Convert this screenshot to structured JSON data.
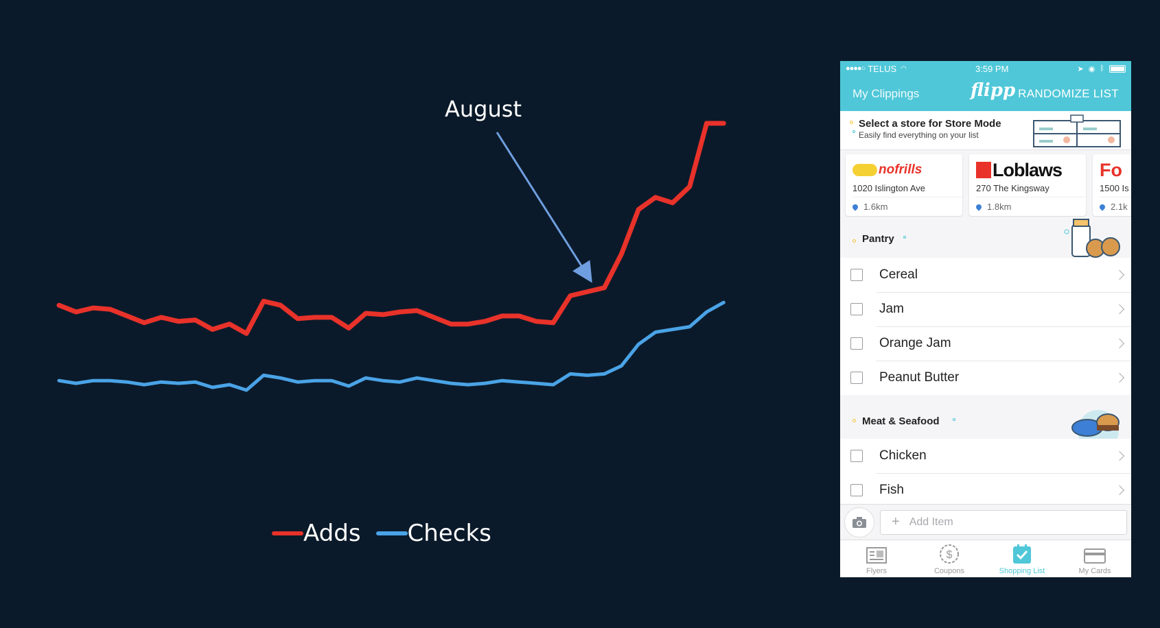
{
  "chart_data": {
    "type": "line",
    "x": [
      1,
      2,
      3,
      4,
      5,
      6,
      7,
      8,
      9,
      10,
      11,
      12,
      13,
      14,
      15,
      16,
      17,
      18,
      19,
      20,
      21,
      22,
      23,
      24,
      25,
      26,
      27,
      28,
      29,
      30,
      31,
      32,
      33,
      34,
      35,
      36,
      37,
      38,
      39,
      40,
      41,
      42
    ],
    "series": [
      {
        "name": "Adds",
        "color": "#e8322a",
        "values": [
          61,
          56,
          59,
          58,
          53,
          48,
          52,
          49,
          50,
          43,
          47,
          40,
          64,
          61,
          51,
          52,
          52,
          44,
          55,
          54,
          56,
          57,
          52,
          47,
          47,
          49,
          53,
          53,
          49,
          48,
          68,
          71,
          74,
          99,
          132,
          141,
          137,
          149,
          196,
          196,
          null,
          null
        ]
      },
      {
        "name": "Checks",
        "color": "#4aa3e6",
        "values": [
          5,
          3,
          5,
          5,
          4,
          2,
          4,
          3,
          4,
          0,
          2,
          -2,
          9,
          7,
          4,
          5,
          5,
          1,
          7,
          5,
          4,
          7,
          5,
          3,
          2,
          3,
          5,
          4,
          3,
          2,
          10,
          9,
          10,
          16,
          32,
          41,
          43,
          45,
          56,
          63,
          null,
          null
        ]
      }
    ],
    "ylim": [
      -30,
      200
    ],
    "annotation": "August",
    "legend_placement": "bottom-center"
  },
  "phone": {
    "status": {
      "carrier": "TELUS",
      "time": "3:59 PM"
    },
    "nav": {
      "left": "My Clippings",
      "logo": "flipp",
      "right": "RANDOMIZE LIST"
    },
    "store_mode": {
      "title": "Select a store for Store Mode",
      "subtitle": "Easily find everything on your list"
    },
    "stores": [
      {
        "name": "nofrills",
        "address": "1020 Islington Ave",
        "distance": "1.6km"
      },
      {
        "name": "Loblaws",
        "address": "270 The Kingsway",
        "distance": "1.8km"
      },
      {
        "name": "Fo",
        "address": "1500 Is",
        "distance": "2.1k"
      }
    ],
    "sections": [
      {
        "title": "Pantry",
        "items": [
          "Cereal",
          "Jam",
          "Orange Jam",
          "Peanut Butter"
        ]
      },
      {
        "title": "Meat & Seafood",
        "items": [
          "Chicken",
          "Fish"
        ]
      }
    ],
    "add_item_placeholder": "Add Item",
    "tabs": [
      {
        "label": "Flyers"
      },
      {
        "label": "Coupons"
      },
      {
        "label": "Shopping List"
      },
      {
        "label": "My Cards"
      }
    ]
  },
  "colors": {
    "background": "#0b1a2a",
    "accent": "#4fc7d8",
    "adds": "#e8322a",
    "checks": "#4aa3e6"
  }
}
